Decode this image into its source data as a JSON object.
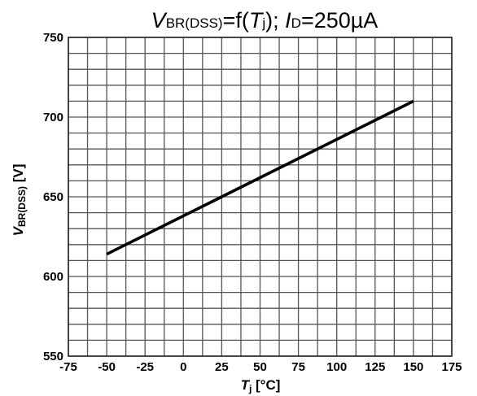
{
  "chart_data": {
    "type": "line",
    "title": {
      "v": "V",
      "v_sub": "BR(DSS)",
      "mid1": "=f(",
      "t": "T",
      "t_sub": "j",
      "mid2": "); ",
      "i": "I",
      "i_sub": "D",
      "end": "=250µA"
    },
    "xlabel": {
      "main": "T",
      "sub": "j",
      "unit": " [°C]"
    },
    "ylabel": {
      "main": "V",
      "sub": "BR(DSS)",
      "unit": " [V]"
    },
    "xlim": [
      -75,
      175
    ],
    "ylim": [
      550,
      750
    ],
    "x_ticks": [
      -75,
      -50,
      -25,
      0,
      25,
      50,
      75,
      100,
      125,
      150,
      175
    ],
    "y_ticks": [
      550,
      600,
      650,
      700,
      750
    ],
    "x_minor_step": 12.5,
    "y_minor_step": 10,
    "grid": true,
    "line_color": "#000000",
    "grid_color": "#555555",
    "series": [
      {
        "x": [
          -50,
          150
        ],
        "y": [
          614,
          710
        ]
      }
    ]
  }
}
